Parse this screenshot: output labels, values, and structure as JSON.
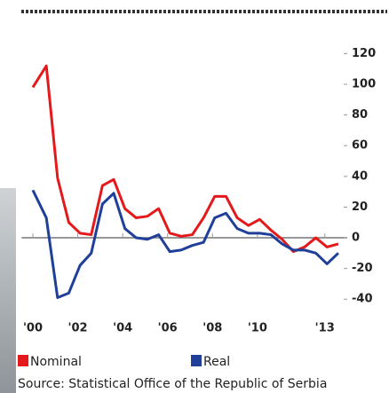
{
  "chart_data": {
    "type": "line",
    "x": [
      2000.0,
      2000.6,
      2001.1,
      2001.6,
      2002.1,
      2002.6,
      2003.1,
      2003.6,
      2004.1,
      2004.6,
      2005.1,
      2005.6,
      2006.1,
      2006.6,
      2007.1,
      2007.6,
      2008.1,
      2008.6,
      2009.1,
      2009.6,
      2010.1,
      2010.6,
      2011.1,
      2011.6,
      2012.1,
      2012.6,
      2013.1,
      2013.6
    ],
    "series": [
      {
        "name": "Nominal",
        "color": "#e3191c",
        "values": [
          98,
          112,
          39,
          10,
          3,
          2,
          34,
          38,
          19,
          13,
          14,
          19,
          3,
          1,
          2,
          13,
          27,
          27,
          13,
          8,
          12,
          5,
          -1,
          -9,
          -6,
          0,
          -6,
          -4
        ]
      },
      {
        "name": "Real",
        "color": "#1f3f99",
        "values": [
          31,
          13,
          -39,
          -36,
          -18,
          -10,
          22,
          29,
          6,
          0,
          -1,
          2,
          -9,
          -8,
          -5,
          -3,
          13,
          16,
          6,
          3,
          3,
          2,
          -4,
          -8,
          -8,
          -10,
          -17,
          -10
        ]
      }
    ],
    "xlim": [
      1999.5,
      2014
    ],
    "xticks": [
      {
        "value": 2000,
        "label": "'00"
      },
      {
        "value": 2002,
        "label": "'02"
      },
      {
        "value": 2004,
        "label": "'04"
      },
      {
        "value": 2006,
        "label": "'06"
      },
      {
        "value": 2008,
        "label": "'08"
      },
      {
        "value": 2010,
        "label": "'10"
      },
      {
        "value": 2013,
        "label": "'13"
      }
    ],
    "ylim": [
      -45,
      125
    ],
    "yticks": [
      120,
      100,
      80,
      60,
      40,
      20,
      0,
      -20,
      -40
    ],
    "legend": "bottom",
    "source": "Source: Statistical Office of the Republic of Serbia"
  }
}
